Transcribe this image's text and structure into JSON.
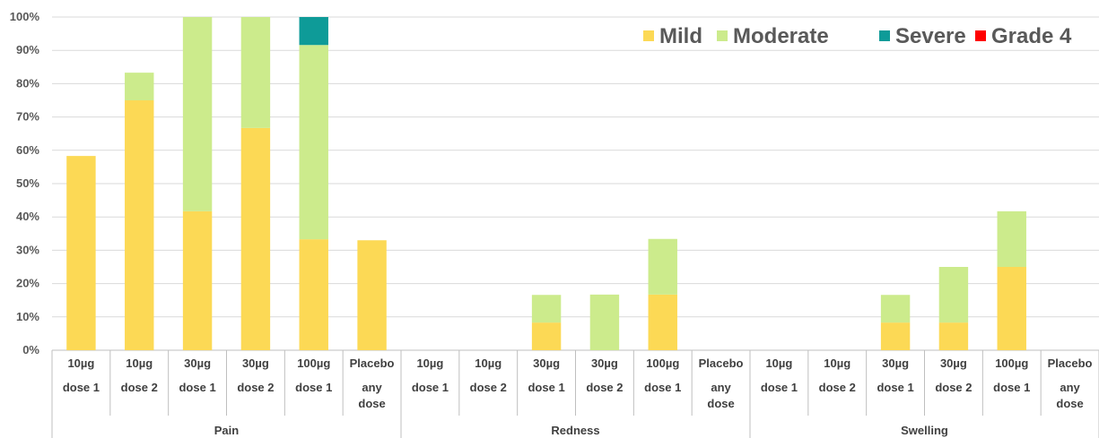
{
  "chart_data": {
    "type": "bar",
    "stacked": true,
    "title": "",
    "ylim": [
      0,
      100
    ],
    "y_tick_labels": [
      "0%",
      "10%",
      "20%",
      "30%",
      "40%",
      "50%",
      "60%",
      "70%",
      "80%",
      "90%",
      "100%"
    ],
    "grid": true,
    "legend_position": "top-right",
    "groups": [
      {
        "name": "Pain",
        "categories": [
          [
            "10µg",
            "dose 1"
          ],
          [
            "10µg",
            "dose 2"
          ],
          [
            "30µg",
            "dose 1"
          ],
          [
            "30µg",
            "dose 2"
          ],
          [
            "100µg",
            "dose 1"
          ],
          [
            "Placebo",
            "any",
            "dose"
          ]
        ]
      },
      {
        "name": "Redness",
        "categories": [
          [
            "10µg",
            "dose 1"
          ],
          [
            "10µg",
            "dose 2"
          ],
          [
            "30µg",
            "dose 1"
          ],
          [
            "30µg",
            "dose 2"
          ],
          [
            "100µg",
            "dose 1"
          ],
          [
            "Placebo",
            "any",
            "dose"
          ]
        ]
      },
      {
        "name": "Swelling",
        "categories": [
          [
            "10µg",
            "dose 1"
          ],
          [
            "10µg",
            "dose 2"
          ],
          [
            "30µg",
            "dose 1"
          ],
          [
            "30µg",
            "dose 2"
          ],
          [
            "100µg",
            "dose 1"
          ],
          [
            "Placebo",
            "any",
            "dose"
          ]
        ]
      }
    ],
    "series": [
      {
        "name": "Mild",
        "color": "#FCD955",
        "values": [
          58.3,
          75,
          41.7,
          66.7,
          33.3,
          33,
          0,
          0,
          8.3,
          0,
          16.7,
          0,
          0,
          0,
          8.3,
          8.3,
          25,
          0
        ]
      },
      {
        "name": "Moderate",
        "color": "#CCEB8C",
        "values": [
          0,
          8.3,
          58.3,
          33.3,
          58.3,
          0,
          0,
          0,
          8.3,
          16.7,
          16.7,
          0,
          0,
          0,
          8.3,
          16.7,
          16.7,
          0
        ]
      },
      {
        "name": "Severe",
        "color": "#0E9B98",
        "values": [
          0,
          0,
          0,
          0,
          8.4,
          0,
          0,
          0,
          0,
          0,
          0,
          0,
          0,
          0,
          0,
          0,
          0,
          0
        ]
      },
      {
        "name": "Grade 4",
        "color": "#FF0000",
        "values": [
          0,
          0,
          0,
          0,
          0,
          0,
          0,
          0,
          0,
          0,
          0,
          0,
          0,
          0,
          0,
          0,
          0,
          0
        ]
      }
    ]
  }
}
